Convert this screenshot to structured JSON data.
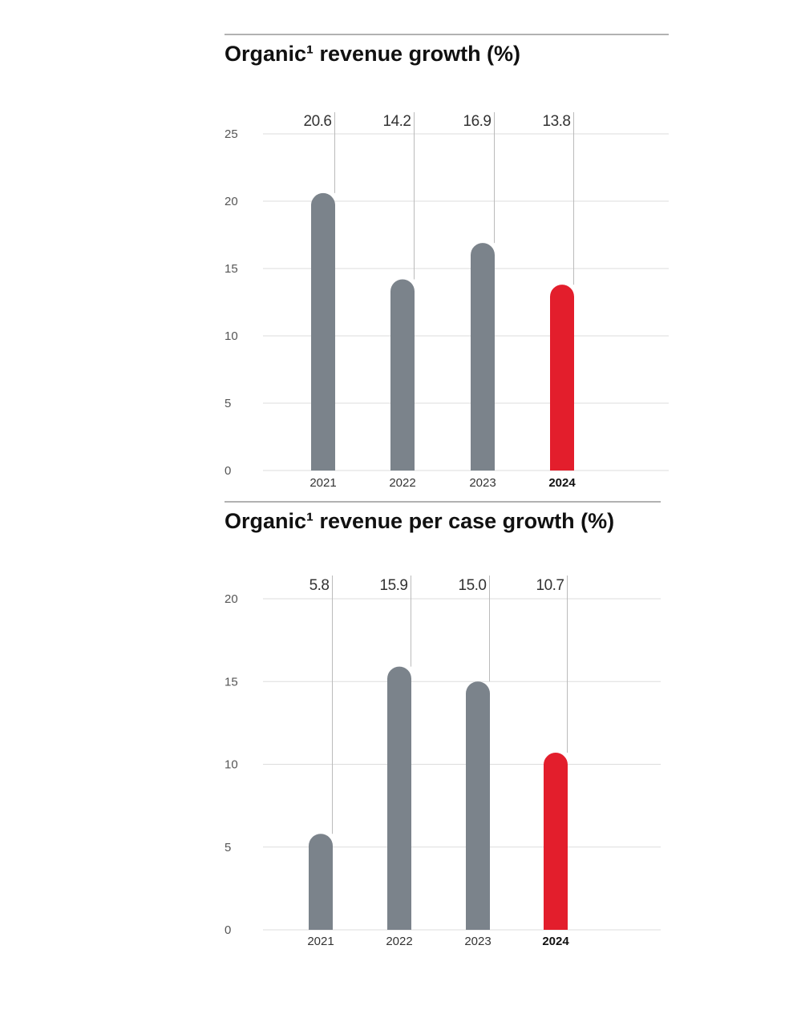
{
  "chart_data": [
    {
      "type": "bar",
      "title": "Organic¹ revenue growth (%)",
      "categories": [
        "2021",
        "2022",
        "2023",
        "2024"
      ],
      "values": [
        20.6,
        14.2,
        16.9,
        13.8
      ],
      "value_labels": [
        "20.6",
        "14.2",
        "16.9",
        "13.8"
      ],
      "yticks": [
        "0",
        "5",
        "10",
        "15",
        "20",
        "25"
      ],
      "ylim": [
        0,
        25
      ],
      "grid": true,
      "highlight_category": "2024",
      "colors": {
        "default": "#7b838b",
        "highlight": "#e31e2c"
      }
    },
    {
      "type": "bar",
      "title": "Organic¹ revenue per case growth (%)",
      "categories": [
        "2021",
        "2022",
        "2023",
        "2024"
      ],
      "values": [
        5.8,
        15.9,
        15.0,
        10.7
      ],
      "value_labels": [
        "5.8",
        "15.9",
        "15.0",
        "10.7"
      ],
      "yticks": [
        "0",
        "5",
        "10",
        "15",
        "20"
      ],
      "ylim": [
        0,
        20
      ],
      "grid": true,
      "highlight_category": "2024",
      "colors": {
        "default": "#7b838b",
        "highlight": "#e31e2c"
      }
    }
  ]
}
